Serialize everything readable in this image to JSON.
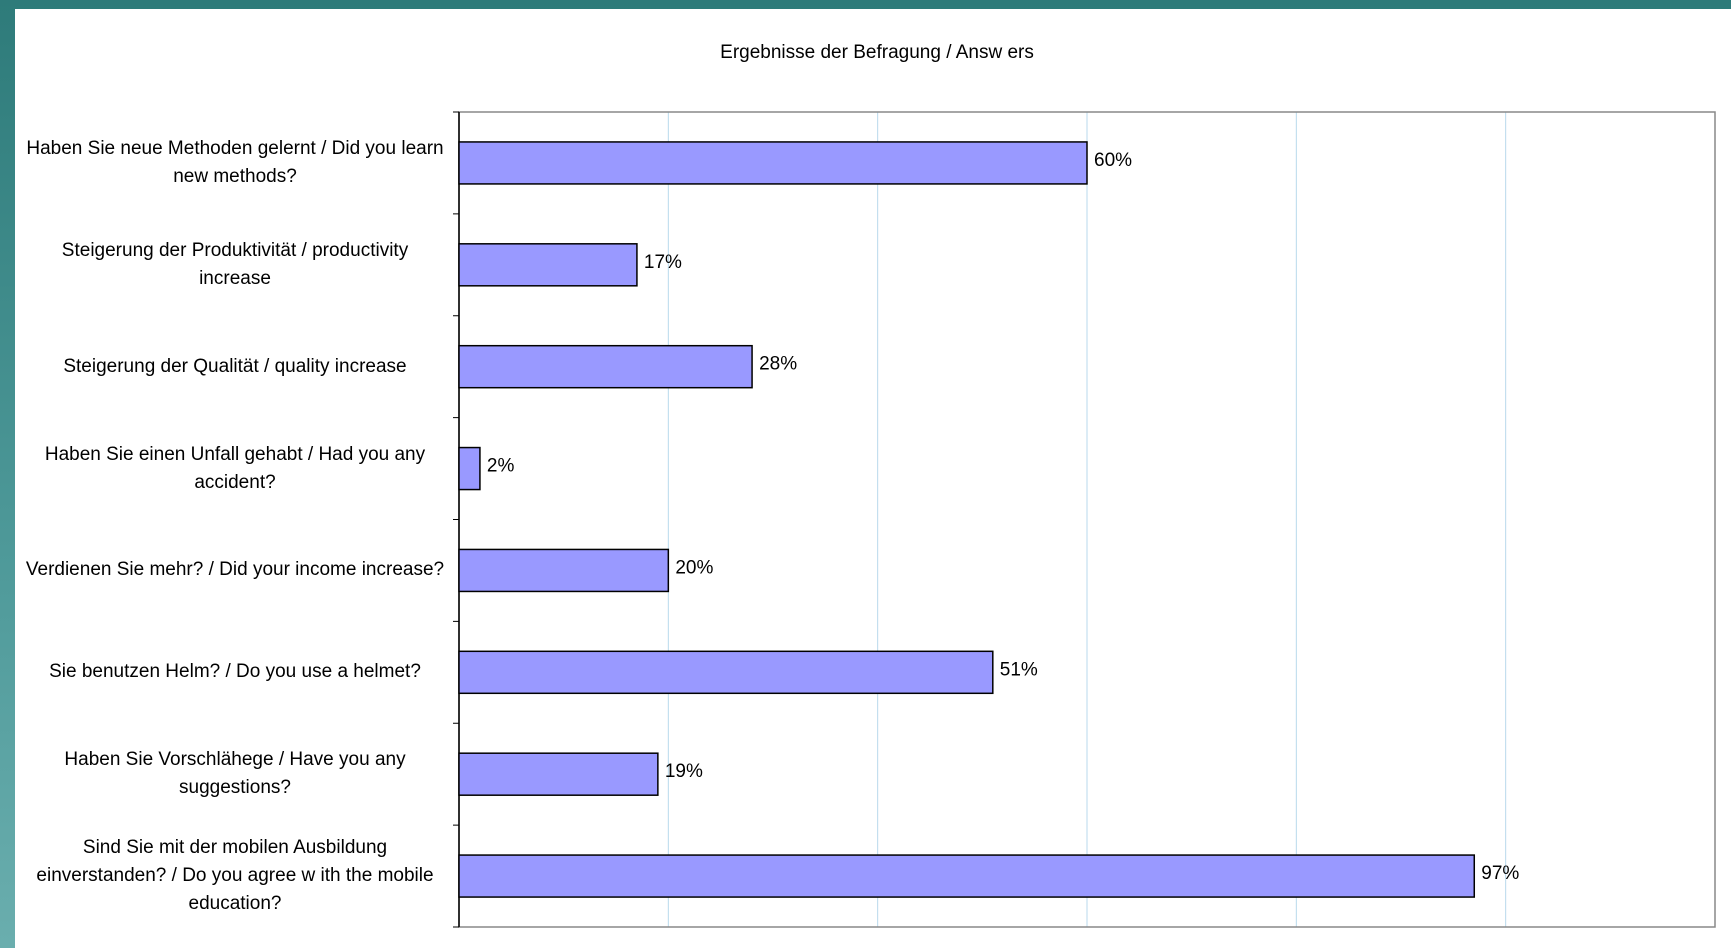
{
  "chart_data": {
    "type": "bar",
    "orientation": "horizontal",
    "title": "Ergebnisse der Befragung / Answ ers",
    "categories": [
      "Haben Sie neue Methoden gelernt / Did you learn new  methods?",
      "Steigerung der Produktivität / productivity increase",
      "Steigerung der Qualität / quality increase",
      "Haben Sie einen Unfall gehabt / Had you any accident?",
      "Verdienen Sie mehr? / Did your income increase?",
      "Sie benutzen Helm? / Do you use a helmet?",
      "Haben Sie Vorschlähege / Have you any suggestions?",
      "Sind Sie mit der mobilen Ausbildung einverstanden? / Do you agree w ith the mobile education?"
    ],
    "values": [
      60,
      17,
      28,
      2,
      20,
      51,
      19,
      97
    ],
    "value_labels": [
      "60%",
      "17%",
      "28%",
      "2%",
      "20%",
      "51%",
      "19%",
      "97%"
    ],
    "color": "#9999ff",
    "xlim": [
      0,
      120
    ],
    "xticks": [
      0,
      20,
      40,
      60,
      80,
      100,
      120
    ],
    "grid": true
  }
}
